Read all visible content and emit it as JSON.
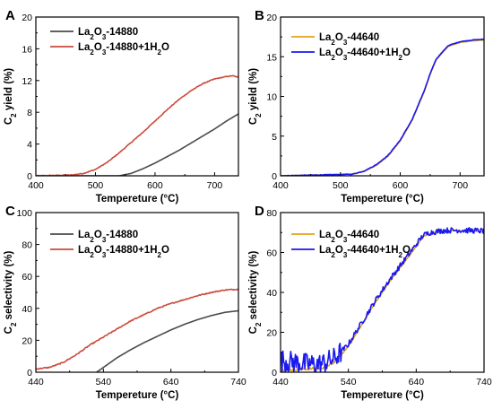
{
  "figure": {
    "width": 550,
    "height": 456
  },
  "chart_data": [
    {
      "panel": "A",
      "type": "line",
      "xlabel": "Tempereture (°C)",
      "ylabel": "C2 yield (%)",
      "xlim": [
        400,
        740
      ],
      "ylim": [
        0,
        20
      ],
      "xticks": [
        400,
        500,
        600,
        700
      ],
      "yticks": [
        0,
        4,
        8,
        12,
        16,
        20
      ],
      "legend": "top-left",
      "series": [
        {
          "name": "La2O3-14880",
          "color": "#4a4a4a",
          "noise": 0,
          "x": [
            400,
            540,
            560,
            580,
            600,
            620,
            640,
            660,
            680,
            700,
            720,
            740
          ],
          "y": [
            0,
            0,
            0.3,
            0.9,
            1.6,
            2.4,
            3.2,
            4.1,
            5.0,
            5.9,
            6.9,
            7.8
          ]
        },
        {
          "name": "La2O3-14880+1H2O",
          "color": "#cc4a3c",
          "noise": 0.12,
          "x": [
            400,
            460,
            480,
            500,
            520,
            540,
            560,
            580,
            600,
            620,
            640,
            660,
            680,
            700,
            720,
            730,
            740
          ],
          "y": [
            0,
            0.1,
            0.3,
            0.8,
            1.7,
            2.9,
            4.2,
            5.5,
            6.9,
            8.3,
            9.6,
            10.7,
            11.6,
            12.2,
            12.5,
            12.6,
            12.4
          ]
        }
      ]
    },
    {
      "panel": "B",
      "type": "line",
      "xlabel": "Tempereture (°C)",
      "ylabel": "C2 yield (%)",
      "xlim": [
        400,
        740
      ],
      "ylim": [
        0,
        20
      ],
      "xticks": [
        400,
        500,
        600,
        700
      ],
      "yticks": [
        0,
        5,
        10,
        15,
        20
      ],
      "legend": "top-left",
      "series": [
        {
          "name": "La2O3-44640",
          "color": "#e3a21a",
          "noise": 0,
          "x": [
            400,
            520,
            540,
            560,
            580,
            600,
            620,
            640,
            650,
            660,
            680,
            700,
            720,
            740
          ],
          "y": [
            0,
            0.2,
            0.6,
            1.3,
            2.5,
            4.4,
            7.0,
            10.6,
            12.8,
            14.6,
            16.3,
            16.8,
            17.0,
            17.1
          ]
        },
        {
          "name": "La2O3-44640+1H2O",
          "color": "#1a1aee",
          "noise": 0.1,
          "x": [
            400,
            520,
            540,
            560,
            580,
            600,
            620,
            640,
            650,
            660,
            680,
            700,
            720,
            740
          ],
          "y": [
            0,
            0.2,
            0.6,
            1.4,
            2.6,
            4.5,
            7.1,
            10.7,
            12.9,
            14.7,
            16.4,
            16.9,
            17.1,
            17.2
          ]
        }
      ]
    },
    {
      "panel": "C",
      "type": "line",
      "xlabel": "Tempereture (°C)",
      "ylabel": "C2 selectivity (%)",
      "xlim": [
        440,
        740
      ],
      "ylim": [
        0,
        100
      ],
      "xticks": [
        440,
        540,
        640,
        740
      ],
      "yticks": [
        0,
        20,
        40,
        60,
        80,
        100
      ],
      "legend": "top-left",
      "series": [
        {
          "name": "La2O3-14880",
          "color": "#4a4a4a",
          "noise": 0,
          "x": [
            530,
            540,
            560,
            580,
            600,
            620,
            640,
            660,
            680,
            700,
            720,
            740
          ],
          "y": [
            0,
            3,
            9,
            14,
            18.5,
            22.5,
            26.5,
            30,
            33,
            35.5,
            37.5,
            38.5
          ]
        },
        {
          "name": "La2O3-14880+1H2O",
          "color": "#cc4a3c",
          "noise": 0.8,
          "x": [
            440,
            460,
            480,
            500,
            520,
            540,
            560,
            580,
            600,
            620,
            640,
            660,
            680,
            700,
            720,
            740
          ],
          "y": [
            2,
            3,
            6,
            11,
            17,
            22,
            27,
            32,
            36,
            40,
            43,
            45.5,
            48,
            50,
            51.5,
            52
          ]
        }
      ]
    },
    {
      "panel": "D",
      "type": "line",
      "xlabel": "Tempereture (°C)",
      "ylabel": "C2 selectivity (%)",
      "xlim": [
        440,
        740
      ],
      "ylim": [
        0,
        80
      ],
      "xticks": [
        440,
        540,
        640,
        740
      ],
      "yticks": [
        0,
        20,
        40,
        60,
        80
      ],
      "legend": "top-left",
      "series": [
        {
          "name": "La2O3-44640",
          "color": "#e3a21a",
          "noise": 0.6,
          "x": [
            440,
            500,
            520,
            540,
            560,
            580,
            600,
            620,
            640,
            650,
            660,
            680,
            700,
            720,
            740
          ],
          "y": [
            1,
            2,
            5,
            13,
            24,
            35,
            45,
            54,
            63,
            68,
            69.5,
            70.5,
            71,
            70.7,
            70.5
          ]
        },
        {
          "name": "La2O3-44640+1H2O",
          "color": "#1a1aee",
          "noise": 3.5,
          "x": [
            440,
            460,
            480,
            500,
            520,
            540,
            560,
            580,
            600,
            620,
            640,
            650,
            660,
            680,
            700,
            720,
            740
          ],
          "y": [
            6,
            5,
            4,
            4,
            7,
            14,
            25,
            36,
            46,
            55,
            64,
            68.5,
            70,
            71,
            71.2,
            71,
            70.8
          ]
        }
      ]
    }
  ]
}
